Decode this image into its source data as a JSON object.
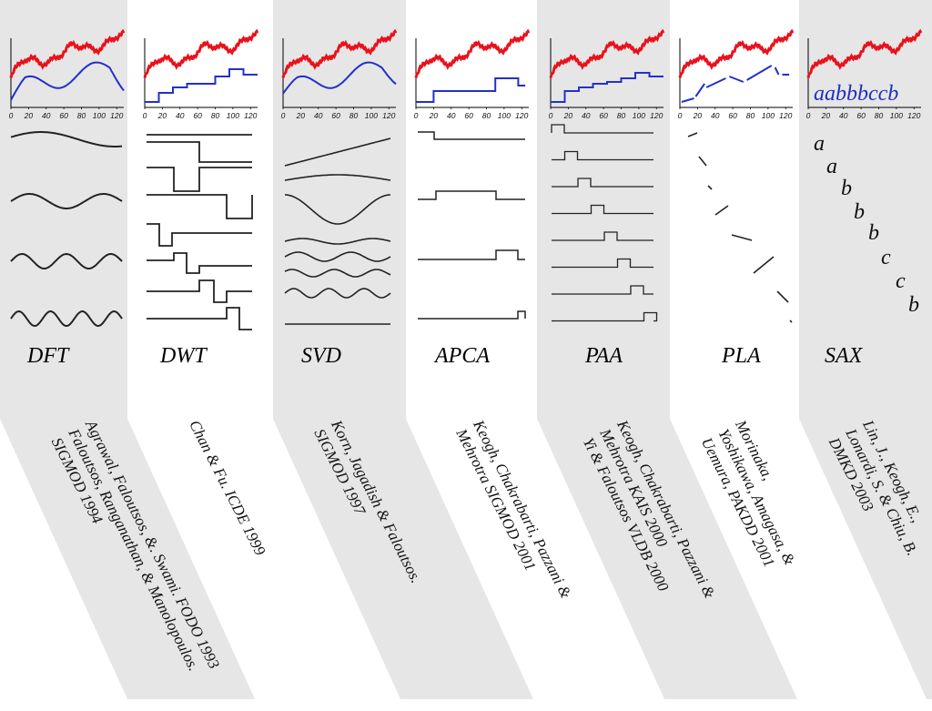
{
  "columns": [
    {
      "id": "dft",
      "label": "DFT",
      "citation": "Agrawal, Faloutsos, &. Swami. FODO 1993\nFaloutsos,  Ranganathan, &  Manolopoulos. SIGMOD 1994"
    },
    {
      "id": "dwt",
      "label": "DWT",
      "citation": "Chan & Fu. ICDE 1999"
    },
    {
      "id": "svd",
      "label": "SVD",
      "citation": "Korn, Jagadish  & Faloutsos.\nSIGMOD 1997"
    },
    {
      "id": "apca",
      "label": "APCA",
      "citation": "Keogh, Chakrabarti, Pazzani &\nMehrotra SIGMOD 2001"
    },
    {
      "id": "paa",
      "label": "PAA",
      "citation": "Keogh, Chakrabarti, Pazzani &\nMehrotra KAIS 2000\nYi & Faloutsos VLDB 2000"
    },
    {
      "id": "pla",
      "label": "PLA",
      "citation": "Morinaka,\nYoshikawa, Amagasa, &\nUemura,  PAKDD 2001"
    },
    {
      "id": "sax",
      "label": "SAX",
      "citation": "Lin, J., Keogh, E.,\nLonardi, S. & Chiu, B.\nDMKD 2003"
    }
  ],
  "x_ticks": [
    "0",
    "20",
    "40",
    "60",
    "80",
    "100",
    "120"
  ],
  "sax": {
    "word": "aabbbccb",
    "letters": [
      "a",
      "a",
      "b",
      "b",
      "b",
      "c",
      "c",
      "b"
    ]
  },
  "colors": {
    "original": "#e8121c",
    "approx": "#2331c8",
    "band": "#e6e6e6",
    "basis": "#222222"
  }
}
